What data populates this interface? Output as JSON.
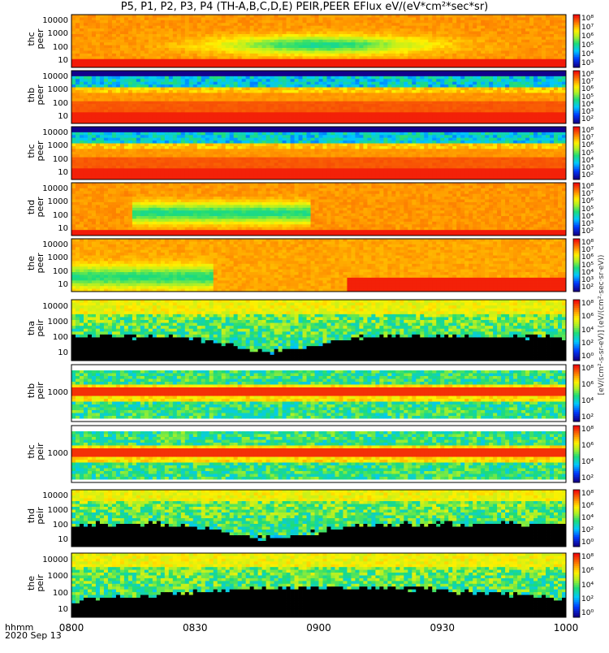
{
  "title": "P5, P1, P2, P3, P4 (TH-A,B,C,D,E) PEIR,PEER EFlux eV/(eV*cm²*sec*sr)",
  "footer": {
    "time_label": "hhmm",
    "date_label": "2020 Sep 13"
  },
  "colorbar_unit_label": "[eV/(cm²-s-sr-eV)]  (eV/(cm²·sec·sr·eV))",
  "colors": {
    "frame": "#000000",
    "background": "#ffffff"
  },
  "chart_data": {
    "type": "heatmap",
    "title": "P5, P1, P2, P3, P4 (TH-A,B,C,D,E) PEIR,PEER EFlux eV/(eV*cm²*sec*sr)",
    "xlabel": "hhmm",
    "x_ticks": [
      "0800",
      "0830",
      "0900",
      "0930",
      "1000"
    ],
    "panels": [
      {
        "ylabel": [
          "thc",
          "peer"
        ],
        "yscale": "log",
        "y_ticks": [
          "10000",
          "1000",
          "100",
          "10"
        ],
        "colorbar_ticks": [
          "10⁸",
          "10⁷",
          "10⁶",
          "10⁵",
          "10⁴",
          "10³"
        ],
        "pattern": "peer-a"
      },
      {
        "ylabel": [
          "thb",
          "peer"
        ],
        "yscale": "log",
        "y_ticks": [
          "10000",
          "1000",
          "100",
          "10"
        ],
        "colorbar_ticks": [
          "10⁸",
          "10⁷",
          "10⁶",
          "10⁵",
          "10⁴",
          "10³",
          "10²"
        ],
        "pattern": "peer-bands"
      },
      {
        "ylabel": [
          "thc",
          "peer"
        ],
        "yscale": "log",
        "y_ticks": [
          "10000",
          "1000",
          "100",
          "10"
        ],
        "colorbar_ticks": [
          "10⁸",
          "10⁷",
          "10⁶",
          "10⁵",
          "10⁴",
          "10³",
          "10²"
        ],
        "pattern": "peer-bands2"
      },
      {
        "ylabel": [
          "thd",
          "peer"
        ],
        "yscale": "log",
        "y_ticks": [
          "10000",
          "1000",
          "100",
          "10"
        ],
        "colorbar_ticks": [
          "10⁸",
          "10⁷",
          "10⁶",
          "10⁵",
          "10⁴",
          "10³",
          "10²"
        ],
        "pattern": "peer-d"
      },
      {
        "ylabel": [
          "the",
          "peer"
        ],
        "yscale": "log",
        "y_ticks": [
          "10000",
          "1000",
          "100",
          "10"
        ],
        "colorbar_ticks": [
          "10⁸",
          "10⁷",
          "10⁶",
          "10⁵",
          "10⁴",
          "10³",
          "10²"
        ],
        "pattern": "peer-e"
      },
      {
        "ylabel": [
          "tha",
          "peir"
        ],
        "yscale": "log",
        "y_ticks": [
          "10000",
          "1000",
          "100",
          "10"
        ],
        "colorbar_ticks": [
          "10⁸",
          "10⁶",
          "10⁴",
          "10²",
          "10⁰"
        ],
        "pattern": "peir-a"
      },
      {
        "ylabel": [
          "thb",
          "peir"
        ],
        "yscale": "log",
        "y_ticks": [
          "1000"
        ],
        "colorbar_ticks": [
          "10⁸",
          "10⁶",
          "10⁴",
          "10²"
        ],
        "pattern": "peir-bands"
      },
      {
        "ylabel": [
          "thc",
          "peir"
        ],
        "yscale": "log",
        "y_ticks": [
          "1000"
        ],
        "colorbar_ticks": [
          "10⁸",
          "10⁶",
          "10⁴",
          "10²"
        ],
        "pattern": "peir-bands2"
      },
      {
        "ylabel": [
          "thd",
          "peir"
        ],
        "yscale": "log",
        "y_ticks": [
          "10000",
          "1000",
          "100",
          "10"
        ],
        "colorbar_ticks": [
          "10⁸",
          "10⁶",
          "10⁴",
          "10²",
          "10⁰"
        ],
        "pattern": "peir-d"
      },
      {
        "ylabel": [
          "the",
          "peir"
        ],
        "yscale": "log",
        "y_ticks": [
          "10000",
          "1000",
          "100",
          "10"
        ],
        "colorbar_ticks": [
          "10⁸",
          "10⁶",
          "10⁴",
          "10²",
          "10⁰"
        ],
        "pattern": "peir-e"
      }
    ]
  }
}
